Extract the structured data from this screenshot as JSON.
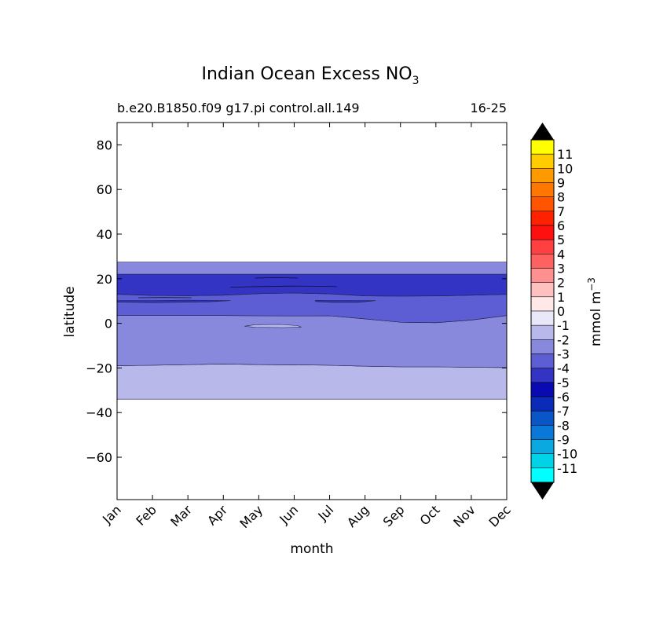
{
  "chart_data": {
    "type": "contour",
    "title": "Indian Ocean Excess NO",
    "title_subscript": "3",
    "subtitle_left": "b.e20.B1850.f09 g17.pi control.all.149",
    "subtitle_right": "16-25",
    "xlabel": "month",
    "ylabel": "latitude",
    "x_categories": [
      "Jan",
      "Feb",
      "Mar",
      "Apr",
      "May",
      "Jun",
      "Jul",
      "Aug",
      "Sep",
      "Oct",
      "Nov",
      "Dec"
    ],
    "ylim": [
      -79,
      90
    ],
    "yticks": [
      {
        "value": 80,
        "label": "80"
      },
      {
        "value": 60,
        "label": "60"
      },
      {
        "value": 40,
        "label": "40"
      },
      {
        "value": 20,
        "label": "20"
      },
      {
        "value": 0,
        "label": "0"
      },
      {
        "value": -20,
        "label": "−20"
      },
      {
        "value": -40,
        "label": "−40"
      },
      {
        "value": -60,
        "label": "−60"
      }
    ],
    "colorbar": {
      "label": "mmol m",
      "label_superscript": "−3",
      "extend": "both",
      "extend_color": "#000000",
      "levels": [
        {
          "label": "11",
          "color": "#ffff00"
        },
        {
          "label": "10",
          "color": "#ffcc00"
        },
        {
          "label": "9",
          "color": "#ff9900"
        },
        {
          "label": "8",
          "color": "#ff7700"
        },
        {
          "label": "7",
          "color": "#ff5500"
        },
        {
          "label": "6",
          "color": "#ff2200"
        },
        {
          "label": "5",
          "color": "#ff1010"
        },
        {
          "label": "4",
          "color": "#ff4040"
        },
        {
          "label": "3",
          "color": "#ff6060"
        },
        {
          "label": "2",
          "color": "#ff9090"
        },
        {
          "label": "1",
          "color": "#ffc0c0"
        },
        {
          "label": "0",
          "color": "#ffe8e8"
        },
        {
          "label": "-1",
          "color": "#e8e8f8"
        },
        {
          "label": "-2",
          "color": "#b8b8ea"
        },
        {
          "label": "-3",
          "color": "#8888dd"
        },
        {
          "label": "-4",
          "color": "#5e5ed4"
        },
        {
          "label": "-5",
          "color": "#3333c4"
        },
        {
          "label": "-6",
          "color": "#0a0ab2"
        },
        {
          "label": "-7",
          "color": "#0a2ab8"
        },
        {
          "label": "-8",
          "color": "#0a55c8"
        },
        {
          "label": "-9",
          "color": "#0a78d8"
        },
        {
          "label": "-10",
          "color": "#0aaae0"
        },
        {
          "label": "-11",
          "color": "#00d2e8"
        },
        {
          "label": "",
          "color": "#00ffff"
        }
      ]
    },
    "regions": [
      {
        "name": "band-minus2-south",
        "level": "-2",
        "color": "#b8b8ea",
        "top": [
          [
            0,
            -19
          ],
          [
            1,
            -18.8
          ],
          [
            2,
            -18.5
          ],
          [
            3,
            -18.2
          ],
          [
            4,
            -18.5
          ],
          [
            5,
            -18.6
          ],
          [
            6,
            -18.8
          ],
          [
            7,
            -19.2
          ],
          [
            8,
            -19.5
          ],
          [
            9,
            -19.5
          ],
          [
            10,
            -19.7
          ],
          [
            11,
            -19.8
          ]
        ],
        "bottom": [
          [
            0,
            -34
          ],
          [
            11,
            -34
          ]
        ]
      },
      {
        "name": "band-minus3-main",
        "level": "-3",
        "color": "#8888dd",
        "top": [
          [
            0,
            3.5
          ],
          [
            1,
            3.5
          ],
          [
            2,
            3.5
          ],
          [
            3,
            3.5
          ],
          [
            4,
            3.4
          ],
          [
            5,
            3.3
          ],
          [
            6,
            3.4
          ],
          [
            7,
            2
          ],
          [
            8,
            0.5
          ],
          [
            9,
            0.3
          ],
          [
            10,
            1.5
          ],
          [
            11,
            3.5
          ]
        ],
        "bottom": [
          [
            0,
            -19
          ],
          [
            1,
            -18.8
          ],
          [
            2,
            -18.5
          ],
          [
            3,
            -18.2
          ],
          [
            4,
            -18.5
          ],
          [
            5,
            -18.6
          ],
          [
            6,
            -18.8
          ],
          [
            7,
            -19.2
          ],
          [
            8,
            -19.5
          ],
          [
            9,
            -19.5
          ],
          [
            10,
            -19.7
          ],
          [
            11,
            -19.8
          ]
        ]
      },
      {
        "name": "band-minus4",
        "level": "-4",
        "color": "#5e5ed4",
        "top": [
          [
            0,
            13
          ],
          [
            1,
            12.5
          ],
          [
            2,
            12.4
          ],
          [
            3,
            12.6
          ],
          [
            4,
            13.3
          ],
          [
            5,
            13.6
          ],
          [
            6,
            13.2
          ],
          [
            7,
            12.3
          ],
          [
            8,
            12.2
          ],
          [
            9,
            12.3
          ],
          [
            10,
            12.6
          ],
          [
            11,
            13
          ]
        ],
        "bottom": [
          [
            0,
            3.5
          ],
          [
            1,
            3.5
          ],
          [
            2,
            3.5
          ],
          [
            3,
            3.5
          ],
          [
            4,
            3.4
          ],
          [
            5,
            3.3
          ],
          [
            6,
            3.4
          ],
          [
            7,
            2
          ],
          [
            8,
            0.5
          ],
          [
            9,
            0.3
          ],
          [
            10,
            1.5
          ],
          [
            11,
            3.5
          ]
        ]
      },
      {
        "name": "band-minus5",
        "level": "-5",
        "color": "#3333c4",
        "top": [
          [
            0,
            22
          ],
          [
            11,
            22
          ]
        ],
        "bottom": [
          [
            0,
            13
          ],
          [
            1,
            12.5
          ],
          [
            2,
            12.4
          ],
          [
            3,
            12.6
          ],
          [
            4,
            13.3
          ],
          [
            5,
            13.6
          ],
          [
            6,
            13.2
          ],
          [
            7,
            12.3
          ],
          [
            8,
            12.2
          ],
          [
            9,
            12.3
          ],
          [
            10,
            12.6
          ],
          [
            11,
            13
          ]
        ]
      },
      {
        "name": "band-minus3-north",
        "level": "-3",
        "color": "#8888dd",
        "top": [
          [
            0,
            27.5
          ],
          [
            11,
            27.5
          ]
        ],
        "bottom": [
          [
            0,
            22
          ],
          [
            11,
            22
          ]
        ]
      }
    ],
    "patches": [
      {
        "name": "patch-minus5-feb",
        "level": "-5",
        "color": "#3333c4",
        "pts": [
          [
            0,
            10.2
          ],
          [
            1,
            10.2
          ],
          [
            2,
            10.4
          ],
          [
            3.2,
            10.2
          ],
          [
            2.5,
            9.6
          ],
          [
            1,
            9.3
          ],
          [
            0,
            9.5
          ]
        ]
      },
      {
        "name": "patch-minus5-jul",
        "level": "-5",
        "color": "#3333c4",
        "pts": [
          [
            5.6,
            10.3
          ],
          [
            6.3,
            10.2
          ],
          [
            7.3,
            10.2
          ],
          [
            6.8,
            9.4
          ],
          [
            6.1,
            9.4
          ],
          [
            5.6,
            9.8
          ]
        ]
      },
      {
        "name": "patch-minus2-may",
        "level": "-2",
        "color": "#b8b8ea",
        "pts": [
          [
            3.6,
            -1.3
          ],
          [
            3.9,
            -0.6
          ],
          [
            4.6,
            -0.5
          ],
          [
            5.1,
            -1
          ],
          [
            5.2,
            -1.7
          ],
          [
            4.7,
            -1.9
          ],
          [
            3.9,
            -1.8
          ]
        ]
      }
    ],
    "contour_lines": [
      {
        "name": "line-minus6-jun",
        "pts": [
          [
            3.9,
            20.3
          ],
          [
            4.5,
            20.5
          ],
          [
            5.1,
            20.3
          ]
        ]
      },
      {
        "name": "line-minus5-may-jul",
        "pts": [
          [
            3.2,
            16.2
          ],
          [
            4,
            16.5
          ],
          [
            5,
            16.7
          ],
          [
            6,
            16.6
          ],
          [
            6.2,
            16.4
          ]
        ]
      },
      {
        "name": "line-minus5-feb",
        "pts": [
          [
            0.6,
            11.5
          ],
          [
            1.3,
            11.6
          ],
          [
            2.1,
            11.5
          ]
        ]
      }
    ]
  }
}
